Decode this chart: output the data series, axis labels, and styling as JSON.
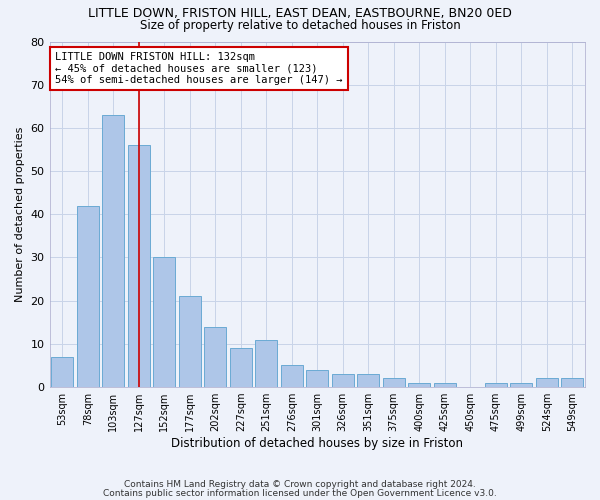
{
  "title": "LITTLE DOWN, FRISTON HILL, EAST DEAN, EASTBOURNE, BN20 0ED",
  "subtitle": "Size of property relative to detached houses in Friston",
  "xlabel": "Distribution of detached houses by size in Friston",
  "ylabel": "Number of detached properties",
  "categories": [
    "53sqm",
    "78sqm",
    "103sqm",
    "127sqm",
    "152sqm",
    "177sqm",
    "202sqm",
    "227sqm",
    "251sqm",
    "276sqm",
    "301sqm",
    "326sqm",
    "351sqm",
    "375sqm",
    "400sqm",
    "425sqm",
    "450sqm",
    "475sqm",
    "499sqm",
    "524sqm",
    "549sqm"
  ],
  "values": [
    7,
    42,
    63,
    56,
    30,
    21,
    14,
    9,
    11,
    5,
    4,
    3,
    3,
    2,
    1,
    1,
    0,
    1,
    1,
    2,
    2
  ],
  "bar_color": "#aec6e8",
  "bar_edge_color": "#6aaad4",
  "grid_color": "#c8d4e8",
  "background_color": "#eef2fa",
  "vline_x": 3,
  "vline_color": "#cc0000",
  "annotation_text": "LITTLE DOWN FRISTON HILL: 132sqm\n← 45% of detached houses are smaller (123)\n54% of semi-detached houses are larger (147) →",
  "annotation_box_color": "#ffffff",
  "annotation_box_edge": "#cc0000",
  "ylim": [
    0,
    80
  ],
  "yticks": [
    0,
    10,
    20,
    30,
    40,
    50,
    60,
    70,
    80
  ],
  "footnote1": "Contains HM Land Registry data © Crown copyright and database right 2024.",
  "footnote2": "Contains public sector information licensed under the Open Government Licence v3.0."
}
